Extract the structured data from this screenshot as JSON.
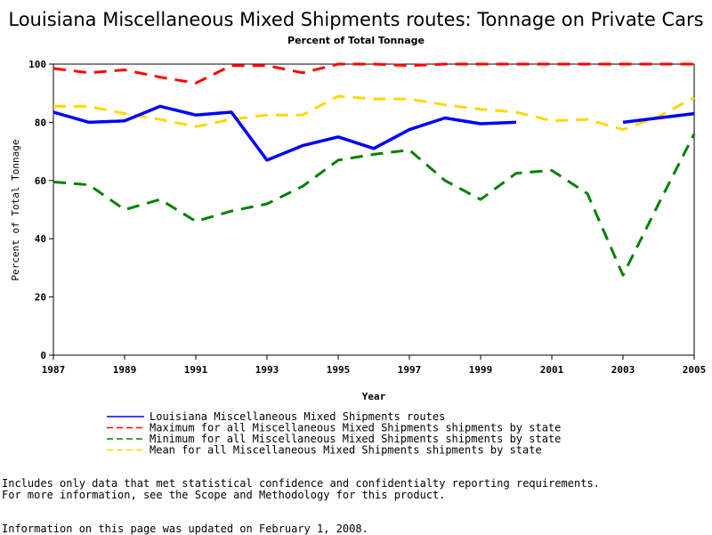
{
  "chart_data": {
    "type": "line",
    "title": "Louisiana Miscellaneous Mixed Shipments routes: Tonnage on Private Cars",
    "subtitle": "Percent of Total Tonnage",
    "xlabel": "Year",
    "ylabel": "Percent of Total Tonnage",
    "xlim": [
      1987,
      2005
    ],
    "ylim": [
      0,
      100
    ],
    "xticks": [
      "1987",
      "1989",
      "1991",
      "1993",
      "1995",
      "1997",
      "1999",
      "2001",
      "2003",
      "2005"
    ],
    "yticks": [
      "0",
      "20",
      "40",
      "60",
      "80",
      "100"
    ],
    "x": [
      1987,
      1988,
      1989,
      1990,
      1991,
      1992,
      1993,
      1994,
      1995,
      1996,
      1997,
      1998,
      1999,
      2000,
      2001,
      2002,
      2003,
      2004,
      2005
    ],
    "series": [
      {
        "name": "Louisiana Miscellaneous Mixed Shipments routes",
        "color": "#0000ff",
        "style": "solid",
        "values": [
          83.5,
          80,
          80.5,
          85.5,
          82.5,
          83.5,
          67,
          72,
          75,
          71,
          77.5,
          81.5,
          79.5,
          80,
          null,
          null,
          80,
          81.5,
          83
        ]
      },
      {
        "name": "Maximum for all Miscellaneous Mixed Shipments shipments by state",
        "color": "#ff0000",
        "style": "dashed",
        "values": [
          98.5,
          97,
          98,
          95.5,
          93.5,
          99.5,
          99.5,
          97,
          100,
          100,
          99.5,
          100,
          100,
          100,
          100,
          100,
          100,
          100,
          100
        ]
      },
      {
        "name": "Minimum for all Miscellaneous Mixed Shipments shipments by state",
        "color": "#008000",
        "style": "dashed",
        "values": [
          59.5,
          58.5,
          50,
          53.5,
          46,
          49.5,
          52,
          58,
          67,
          69,
          70.5,
          60,
          53.5,
          62.5,
          63.5,
          55.5,
          27.5,
          52,
          76
        ]
      },
      {
        "name": "Mean for all Miscellaneous Mixed Shipments shipments by state",
        "color": "#ffd700",
        "style": "dashed",
        "values": [
          85.5,
          85.5,
          83,
          81,
          78.5,
          81,
          82.5,
          82.5,
          89,
          88,
          88,
          86,
          84.5,
          83.5,
          80.5,
          81,
          77.5,
          82,
          88.5
        ]
      }
    ]
  },
  "footer": {
    "line1": "Includes only data that met statistical confidence and confidentialty reporting requirements.",
    "line2": "For more information, see the Scope and Methodology for this product.",
    "line3": "Information on this page was updated on February 1, 2008."
  }
}
